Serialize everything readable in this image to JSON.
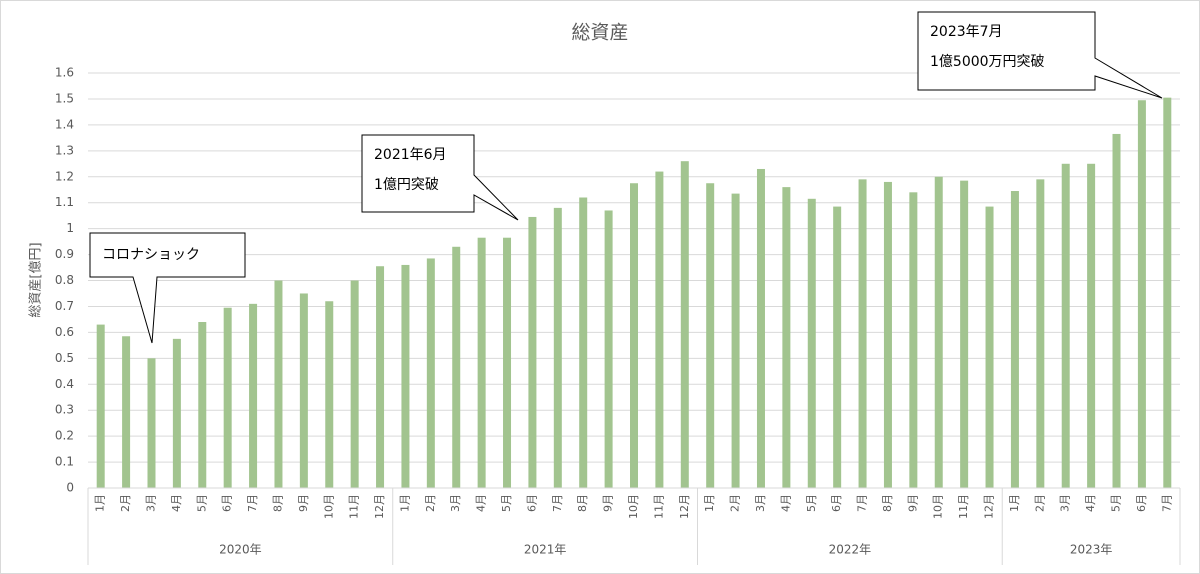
{
  "chart_data": {
    "type": "bar",
    "title": "総資産",
    "y_label": "総資産[億円]",
    "color": "#a2c48f",
    "grid": true,
    "ylim": [
      0,
      1.6
    ],
    "yticks": [
      0,
      0.1,
      0.2,
      0.3,
      0.4,
      0.5,
      0.6,
      0.7,
      0.8,
      0.9,
      1,
      1.1,
      1.2,
      1.3,
      1.4,
      1.5,
      1.6
    ],
    "groups": [
      {
        "name": "2020年",
        "categories": [
          "1月",
          "2月",
          "3月",
          "4月",
          "5月",
          "6月",
          "7月",
          "8月",
          "9月",
          "10月",
          "11月",
          "12月"
        ],
        "values": [
          0.63,
          0.585,
          0.5,
          0.575,
          0.64,
          0.695,
          0.71,
          0.8,
          0.75,
          0.72,
          0.8,
          0.855
        ]
      },
      {
        "name": "2021年",
        "categories": [
          "1月",
          "2月",
          "3月",
          "4月",
          "5月",
          "6月",
          "7月",
          "8月",
          "9月",
          "10月",
          "11月",
          "12月"
        ],
        "values": [
          0.86,
          0.885,
          0.93,
          0.965,
          0.965,
          1.045,
          1.08,
          1.12,
          1.07,
          1.175,
          1.22,
          1.26
        ]
      },
      {
        "name": "2022年",
        "categories": [
          "1月",
          "2月",
          "3月",
          "4月",
          "5月",
          "6月",
          "7月",
          "8月",
          "9月",
          "10月",
          "11月",
          "12月"
        ],
        "values": [
          1.175,
          1.135,
          1.23,
          1.16,
          1.115,
          1.085,
          1.19,
          1.18,
          1.14,
          1.2,
          1.185,
          1.085
        ]
      },
      {
        "name": "2023年",
        "categories": [
          "1月",
          "2月",
          "3月",
          "4月",
          "5月",
          "6月",
          "7月"
        ],
        "values": [
          1.145,
          1.19,
          1.25,
          1.25,
          1.365,
          1.495,
          1.505
        ]
      }
    ],
    "annotations": [
      {
        "lines": [
          "コロナショック"
        ]
      },
      {
        "lines": [
          "2021年6月",
          "1億円突破"
        ]
      },
      {
        "lines": [
          "2023年7月",
          "1億5000万円突破"
        ]
      }
    ]
  }
}
